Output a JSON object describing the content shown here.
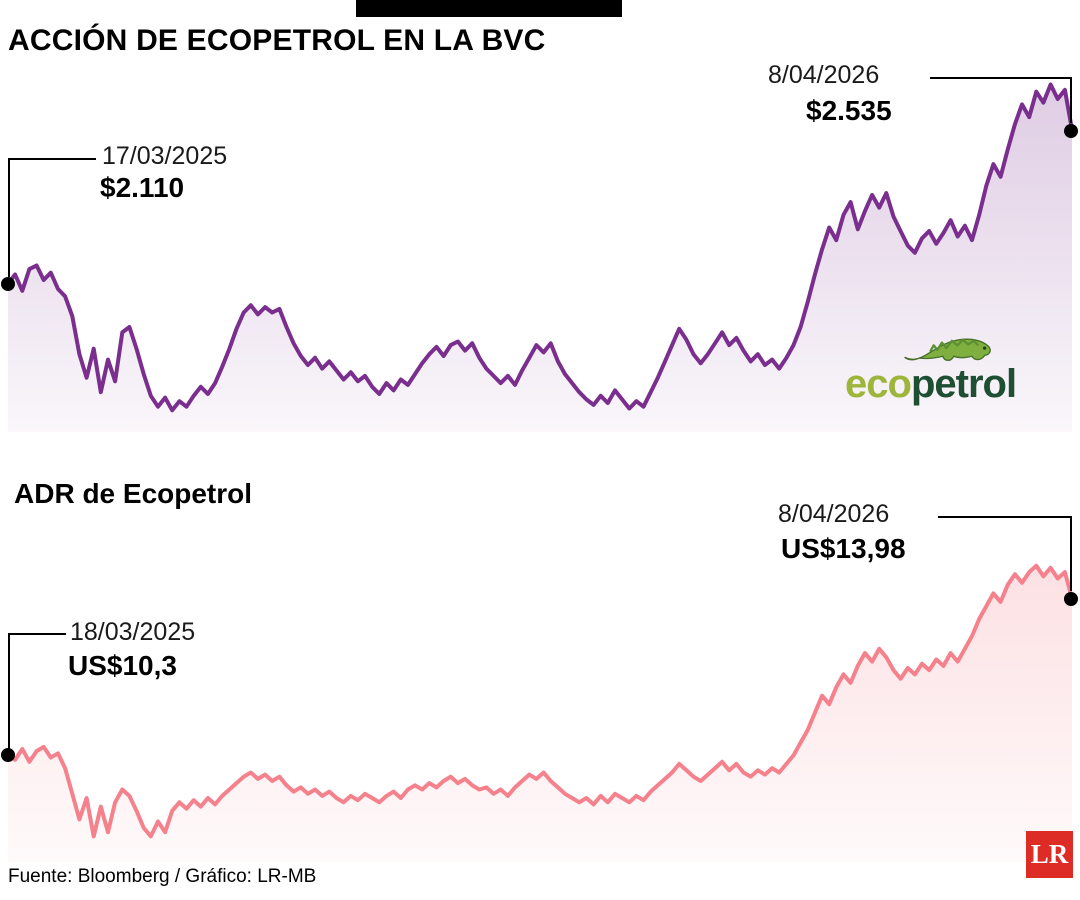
{
  "page": {
    "footer": "Fuente: Bloomberg / Gráfico: LR-MB"
  },
  "logos": {
    "ecopetrol_eco": "eco",
    "ecopetrol_petrol": "petrol",
    "lr": "LR"
  },
  "colors": {
    "bvc_line": "#7A2E8E",
    "adr_line": "#F4818C",
    "annotation_black": "#000000",
    "lr_red": "#DD2C26",
    "eco_green_light": "#9EB53C",
    "eco_green_dark": "#1E4F33"
  },
  "chart_data": [
    {
      "type": "area",
      "title": "ACCIÓN DE ECOPETROL EN LA BVC",
      "series_name": "Acción de Ecopetrol en la BVC (pesos)",
      "line_color": "#7A2E8E",
      "ylim": [
        1700,
        2700
      ],
      "x_start_date": "17/03/2025",
      "x_end_date": "8/04/2026",
      "start_annotation": {
        "date": "17/03/2025",
        "value_label": "$2.110",
        "value": 2110
      },
      "end_annotation": {
        "date": "8/04/2026",
        "value_label": "$2.535",
        "value": 2535
      },
      "values": [
        2110,
        2135,
        2090,
        2150,
        2160,
        2120,
        2140,
        2095,
        2075,
        2020,
        1915,
        1850,
        1930,
        1810,
        1900,
        1840,
        1975,
        1990,
        1930,
        1860,
        1800,
        1770,
        1795,
        1760,
        1785,
        1770,
        1800,
        1825,
        1805,
        1835,
        1880,
        1930,
        1985,
        2030,
        2050,
        2025,
        2045,
        2030,
        2040,
        1990,
        1945,
        1910,
        1885,
        1905,
        1875,
        1895,
        1870,
        1845,
        1865,
        1840,
        1855,
        1825,
        1805,
        1835,
        1815,
        1845,
        1830,
        1860,
        1890,
        1915,
        1935,
        1910,
        1940,
        1950,
        1925,
        1945,
        1905,
        1875,
        1855,
        1835,
        1855,
        1830,
        1870,
        1905,
        1940,
        1920,
        1945,
        1895,
        1860,
        1835,
        1810,
        1790,
        1775,
        1800,
        1780,
        1815,
        1790,
        1765,
        1785,
        1770,
        1810,
        1850,
        1895,
        1940,
        1985,
        1955,
        1915,
        1890,
        1915,
        1945,
        1975,
        1940,
        1960,
        1925,
        1895,
        1915,
        1885,
        1900,
        1875,
        1905,
        1940,
        1990,
        2060,
        2135,
        2205,
        2265,
        2230,
        2300,
        2335,
        2260,
        2310,
        2355,
        2320,
        2360,
        2295,
        2255,
        2215,
        2195,
        2235,
        2255,
        2220,
        2250,
        2285,
        2240,
        2270,
        2230,
        2300,
        2380,
        2440,
        2405,
        2480,
        2550,
        2605,
        2570,
        2640,
        2610,
        2660,
        2620,
        2645,
        2535
      ]
    },
    {
      "type": "area",
      "title": "ADR de Ecopetrol",
      "series_name": "ADR de Ecopetrol (US$)",
      "line_color": "#F4818C",
      "ylim": [
        7.8,
        15.0
      ],
      "x_start_date": "18/03/2025",
      "x_end_date": "8/04/2026",
      "start_annotation": {
        "date": "18/03/2025",
        "value_label": "US$10,3",
        "value": 10.3
      },
      "end_annotation": {
        "date": "8/04/2026",
        "value_label": "US$13,98",
        "value": 13.98
      },
      "values": [
        10.3,
        10.2,
        10.45,
        10.15,
        10.4,
        10.5,
        10.25,
        10.35,
        10.0,
        9.4,
        8.8,
        9.3,
        8.4,
        9.1,
        8.5,
        9.2,
        9.5,
        9.35,
        9.0,
        8.6,
        8.4,
        8.75,
        8.5,
        9.0,
        9.2,
        9.05,
        9.25,
        9.1,
        9.3,
        9.15,
        9.35,
        9.5,
        9.65,
        9.8,
        9.9,
        9.75,
        9.85,
        9.7,
        9.8,
        9.6,
        9.45,
        9.55,
        9.4,
        9.5,
        9.35,
        9.45,
        9.3,
        9.2,
        9.35,
        9.25,
        9.4,
        9.3,
        9.2,
        9.35,
        9.45,
        9.3,
        9.5,
        9.6,
        9.5,
        9.65,
        9.55,
        9.7,
        9.8,
        9.65,
        9.75,
        9.6,
        9.5,
        9.55,
        9.4,
        9.5,
        9.35,
        9.55,
        9.7,
        9.85,
        9.75,
        9.9,
        9.7,
        9.55,
        9.4,
        9.3,
        9.2,
        9.3,
        9.15,
        9.35,
        9.2,
        9.4,
        9.3,
        9.2,
        9.35,
        9.25,
        9.45,
        9.6,
        9.75,
        9.9,
        10.1,
        9.95,
        9.8,
        9.7,
        9.85,
        10.0,
        10.15,
        9.95,
        10.1,
        9.9,
        9.8,
        9.95,
        9.85,
        10.0,
        9.9,
        10.1,
        10.3,
        10.6,
        10.9,
        11.3,
        11.7,
        11.5,
        11.9,
        12.2,
        12.0,
        12.4,
        12.7,
        12.5,
        12.8,
        12.6,
        12.3,
        12.1,
        12.35,
        12.2,
        12.45,
        12.3,
        12.55,
        12.4,
        12.7,
        12.5,
        12.8,
        13.1,
        13.5,
        13.8,
        14.1,
        13.9,
        14.3,
        14.55,
        14.35,
        14.6,
        14.75,
        14.5,
        14.7,
        14.45,
        14.6,
        13.98
      ]
    }
  ]
}
